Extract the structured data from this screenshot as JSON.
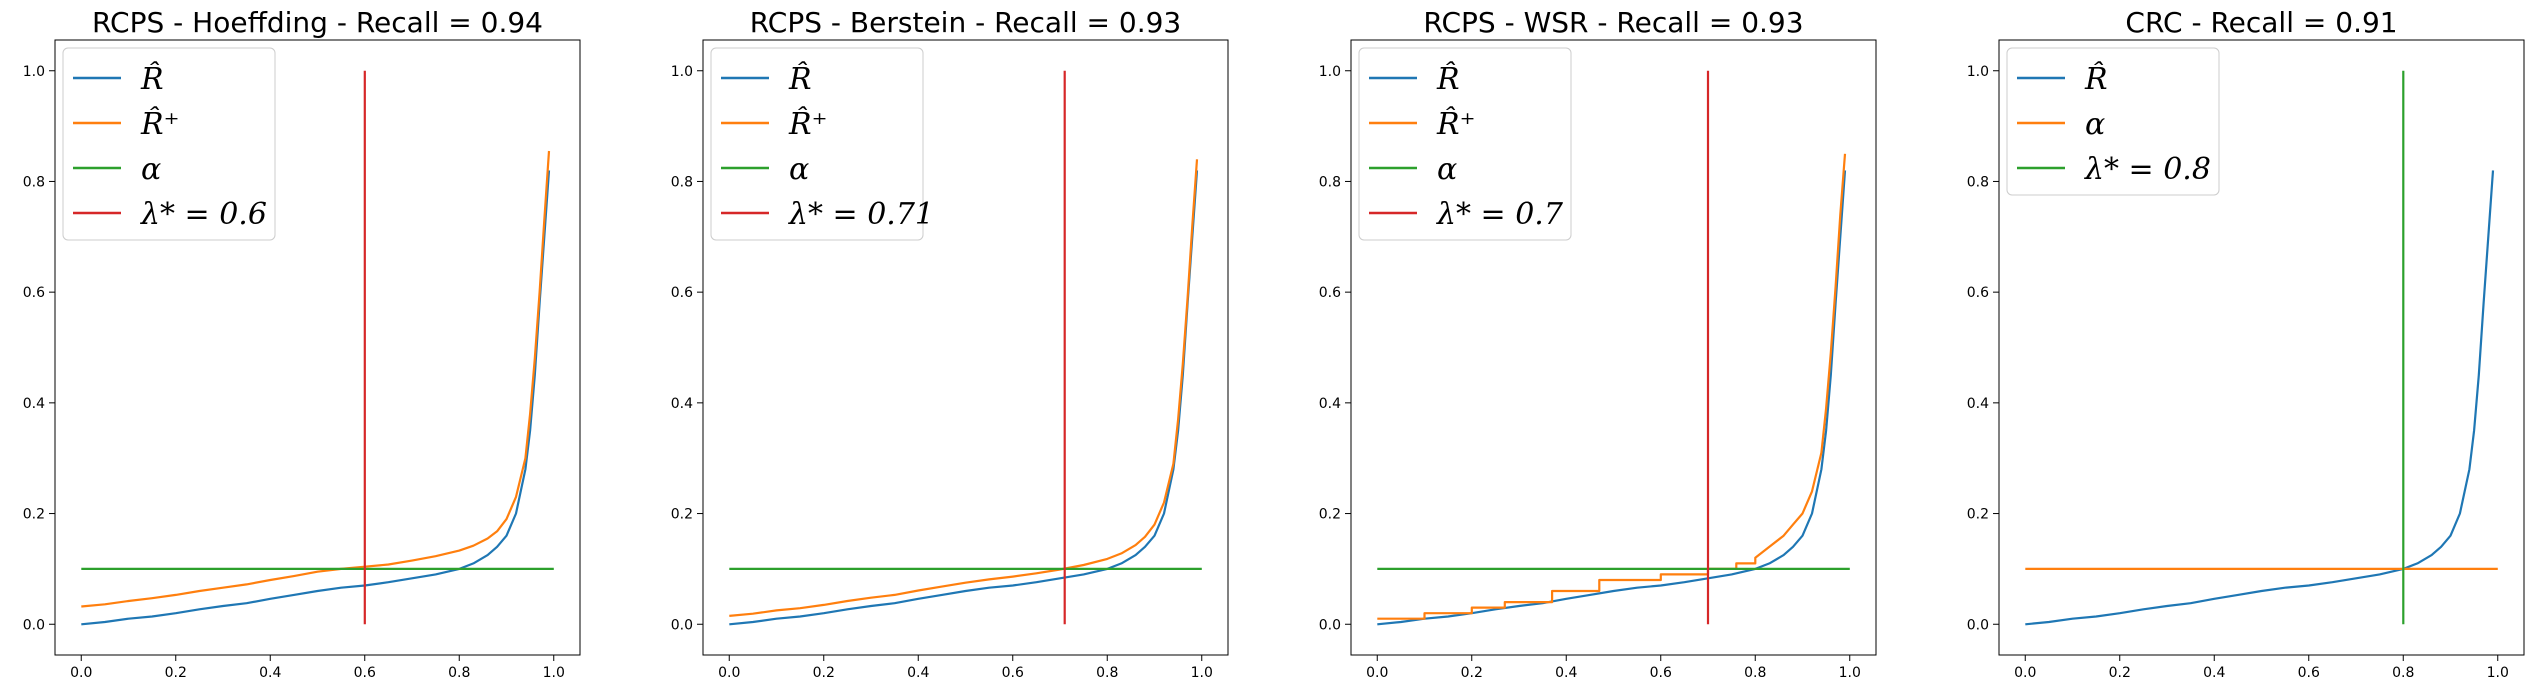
{
  "colors": {
    "R_hat": "#1f77b4",
    "R_plus": "#ff7f0e",
    "alpha": "#2ca02c",
    "lambda": "#d62728"
  },
  "chart_data": [
    {
      "type": "line",
      "title": "RCPS - Hoeffding - Recall = 0.94",
      "xlim": [
        0,
        1
      ],
      "ylim": [
        0,
        1
      ],
      "xticks": [
        "0.0",
        "0.2",
        "0.4",
        "0.6",
        "0.8",
        "1.0"
      ],
      "yticks": [
        "0.0",
        "0.2",
        "0.4",
        "0.6",
        "0.8",
        "1.0"
      ],
      "legend_placement": "top-left",
      "series": [
        {
          "name": "R̂",
          "color": "#1f77b4",
          "x": [
            0,
            0.05,
            0.1,
            0.15,
            0.2,
            0.25,
            0.3,
            0.35,
            0.4,
            0.45,
            0.5,
            0.55,
            0.6,
            0.65,
            0.7,
            0.75,
            0.8,
            0.83,
            0.86,
            0.88,
            0.9,
            0.92,
            0.94,
            0.95,
            0.96,
            0.97,
            0.98,
            0.99
          ],
          "y": [
            0,
            0.004,
            0.01,
            0.014,
            0.02,
            0.027,
            0.033,
            0.038,
            0.046,
            0.053,
            0.06,
            0.066,
            0.07,
            0.076,
            0.083,
            0.09,
            0.1,
            0.11,
            0.125,
            0.14,
            0.16,
            0.2,
            0.28,
            0.35,
            0.45,
            0.58,
            0.7,
            0.82
          ]
        },
        {
          "name": "R̂⁺",
          "color": "#ff7f0e",
          "x": [
            0,
            0.05,
            0.1,
            0.15,
            0.2,
            0.25,
            0.3,
            0.35,
            0.4,
            0.45,
            0.5,
            0.55,
            0.6,
            0.65,
            0.7,
            0.75,
            0.8,
            0.83,
            0.86,
            0.88,
            0.9,
            0.92,
            0.94,
            0.95,
            0.96,
            0.97,
            0.98,
            0.99
          ],
          "y": [
            0.032,
            0.036,
            0.042,
            0.047,
            0.053,
            0.06,
            0.066,
            0.072,
            0.08,
            0.087,
            0.095,
            0.1,
            0.104,
            0.108,
            0.115,
            0.123,
            0.133,
            0.142,
            0.155,
            0.168,
            0.19,
            0.23,
            0.3,
            0.38,
            0.48,
            0.6,
            0.73,
            0.855
          ]
        },
        {
          "name": "α",
          "color": "#2ca02c",
          "x": [
            0,
            1
          ],
          "y": [
            0.1,
            0.1
          ]
        },
        {
          "name": "λ* = 0.6",
          "color": "#d62728",
          "x": [
            0.6,
            0.6
          ],
          "y": [
            0,
            1
          ]
        }
      ]
    },
    {
      "type": "line",
      "title": "RCPS - Berstein - Recall = 0.93",
      "xlim": [
        0,
        1
      ],
      "ylim": [
        0,
        1
      ],
      "xticks": [
        "0.0",
        "0.2",
        "0.4",
        "0.6",
        "0.8",
        "1.0"
      ],
      "yticks": [
        "0.0",
        "0.2",
        "0.4",
        "0.6",
        "0.8",
        "1.0"
      ],
      "legend_placement": "top-left",
      "series": [
        {
          "name": "R̂",
          "color": "#1f77b4",
          "x": [
            0,
            0.05,
            0.1,
            0.15,
            0.2,
            0.25,
            0.3,
            0.35,
            0.4,
            0.45,
            0.5,
            0.55,
            0.6,
            0.65,
            0.7,
            0.75,
            0.8,
            0.83,
            0.86,
            0.88,
            0.9,
            0.92,
            0.94,
            0.95,
            0.96,
            0.97,
            0.98,
            0.99
          ],
          "y": [
            0,
            0.004,
            0.01,
            0.014,
            0.02,
            0.027,
            0.033,
            0.038,
            0.046,
            0.053,
            0.06,
            0.066,
            0.07,
            0.076,
            0.083,
            0.09,
            0.1,
            0.11,
            0.125,
            0.14,
            0.16,
            0.2,
            0.28,
            0.35,
            0.45,
            0.58,
            0.7,
            0.82
          ]
        },
        {
          "name": "R̂⁺",
          "color": "#ff7f0e",
          "x": [
            0,
            0.05,
            0.1,
            0.15,
            0.2,
            0.25,
            0.3,
            0.35,
            0.4,
            0.45,
            0.5,
            0.55,
            0.6,
            0.65,
            0.7,
            0.75,
            0.8,
            0.83,
            0.86,
            0.88,
            0.9,
            0.92,
            0.94,
            0.95,
            0.96,
            0.97,
            0.98,
            0.99
          ],
          "y": [
            0.015,
            0.019,
            0.025,
            0.029,
            0.035,
            0.042,
            0.048,
            0.053,
            0.061,
            0.068,
            0.075,
            0.081,
            0.086,
            0.092,
            0.099,
            0.107,
            0.118,
            0.128,
            0.143,
            0.158,
            0.18,
            0.22,
            0.29,
            0.37,
            0.47,
            0.59,
            0.72,
            0.84
          ]
        },
        {
          "name": "α",
          "color": "#2ca02c",
          "x": [
            0,
            1
          ],
          "y": [
            0.1,
            0.1
          ]
        },
        {
          "name": "λ* = 0.71",
          "color": "#d62728",
          "x": [
            0.71,
            0.71
          ],
          "y": [
            0,
            1
          ]
        }
      ]
    },
    {
      "type": "line",
      "title": "RCPS - WSR - Recall = 0.93",
      "xlim": [
        0,
        1
      ],
      "ylim": [
        0,
        1
      ],
      "xticks": [
        "0.0",
        "0.2",
        "0.4",
        "0.6",
        "0.8",
        "1.0"
      ],
      "yticks": [
        "0.0",
        "0.2",
        "0.4",
        "0.6",
        "0.8",
        "1.0"
      ],
      "legend_placement": "top-left",
      "series": [
        {
          "name": "R̂",
          "color": "#1f77b4",
          "x": [
            0,
            0.05,
            0.1,
            0.15,
            0.2,
            0.25,
            0.3,
            0.35,
            0.4,
            0.45,
            0.5,
            0.55,
            0.6,
            0.65,
            0.7,
            0.75,
            0.8,
            0.83,
            0.86,
            0.88,
            0.9,
            0.92,
            0.94,
            0.95,
            0.96,
            0.97,
            0.98,
            0.99
          ],
          "y": [
            0,
            0.004,
            0.01,
            0.014,
            0.02,
            0.027,
            0.033,
            0.038,
            0.046,
            0.053,
            0.06,
            0.066,
            0.07,
            0.076,
            0.083,
            0.09,
            0.1,
            0.11,
            0.125,
            0.14,
            0.16,
            0.2,
            0.28,
            0.35,
            0.45,
            0.58,
            0.7,
            0.82
          ]
        },
        {
          "name": "R̂⁺",
          "color": "#ff7f0e",
          "x": [
            0,
            0.1,
            0.1,
            0.2,
            0.2,
            0.27,
            0.27,
            0.37,
            0.37,
            0.47,
            0.47,
            0.6,
            0.6,
            0.7,
            0.7,
            0.76,
            0.76,
            0.8,
            0.8,
            0.83,
            0.86,
            0.88,
            0.9,
            0.92,
            0.94,
            0.95,
            0.96,
            0.97,
            0.98,
            0.99
          ],
          "y": [
            0.01,
            0.01,
            0.02,
            0.02,
            0.03,
            0.03,
            0.04,
            0.04,
            0.06,
            0.06,
            0.08,
            0.08,
            0.09,
            0.09,
            0.1,
            0.1,
            0.11,
            0.11,
            0.12,
            0.14,
            0.16,
            0.18,
            0.2,
            0.24,
            0.31,
            0.39,
            0.49,
            0.61,
            0.74,
            0.85
          ]
        },
        {
          "name": "α",
          "color": "#2ca02c",
          "x": [
            0,
            1
          ],
          "y": [
            0.1,
            0.1
          ]
        },
        {
          "name": "λ* = 0.7",
          "color": "#d62728",
          "x": [
            0.7,
            0.7
          ],
          "y": [
            0,
            1
          ]
        }
      ]
    },
    {
      "type": "line",
      "title": "CRC - Recall = 0.91",
      "xlim": [
        0,
        1
      ],
      "ylim": [
        0,
        1
      ],
      "xticks": [
        "0.0",
        "0.2",
        "0.4",
        "0.6",
        "0.8",
        "1.0"
      ],
      "yticks": [
        "0.0",
        "0.2",
        "0.4",
        "0.6",
        "0.8",
        "1.0"
      ],
      "legend_placement": "top-left",
      "series": [
        {
          "name": "R̂",
          "color": "#1f77b4",
          "x": [
            0,
            0.05,
            0.1,
            0.15,
            0.2,
            0.25,
            0.3,
            0.35,
            0.4,
            0.45,
            0.5,
            0.55,
            0.6,
            0.65,
            0.7,
            0.75,
            0.8,
            0.83,
            0.86,
            0.88,
            0.9,
            0.92,
            0.94,
            0.95,
            0.96,
            0.97,
            0.98,
            0.99
          ],
          "y": [
            0,
            0.004,
            0.01,
            0.014,
            0.02,
            0.027,
            0.033,
            0.038,
            0.046,
            0.053,
            0.06,
            0.066,
            0.07,
            0.076,
            0.083,
            0.09,
            0.1,
            0.11,
            0.125,
            0.14,
            0.16,
            0.2,
            0.28,
            0.35,
            0.45,
            0.58,
            0.7,
            0.82
          ]
        },
        {
          "name": "α",
          "color": "#ff7f0e",
          "x": [
            0,
            1
          ],
          "y": [
            0.1,
            0.1
          ]
        },
        {
          "name": "λ* = 0.8",
          "color": "#2ca02c",
          "x": [
            0.8,
            0.8
          ],
          "y": [
            0,
            1
          ]
        }
      ]
    }
  ]
}
